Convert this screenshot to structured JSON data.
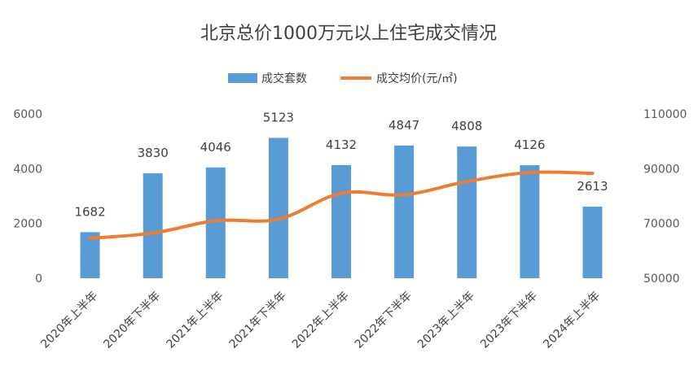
{
  "chart_data": {
    "type": "bar",
    "title": "北京总价1000万元以上住宅成交情况",
    "categories": [
      "2020年上半年",
      "2020年下半年",
      "2021年上半年",
      "2021年下半年",
      "2022年上半年",
      "2022年下半年",
      "2023年上半年",
      "2023年下半年",
      "2024年上半年"
    ],
    "series": [
      {
        "name": "成交套数",
        "type": "bar",
        "axis": "left",
        "color": "#5b9bd5",
        "values": [
          1682,
          3830,
          4046,
          5123,
          4132,
          4847,
          4808,
          4126,
          2613
        ]
      },
      {
        "name": "成交均价(元/㎡)",
        "type": "line",
        "axis": "right",
        "color": "#ed7d31",
        "values": [
          64600,
          66500,
          71000,
          71600,
          81000,
          80500,
          85300,
          88600,
          88300
        ]
      }
    ],
    "y_left": {
      "ylim": [
        0,
        6000
      ],
      "ticks": [
        "0",
        "2000",
        "4000",
        "6000"
      ]
    },
    "y_right": {
      "ylim": [
        50000,
        110000
      ],
      "ticks": [
        "50000",
        "70000",
        "90000",
        "110000"
      ]
    },
    "legend_position": "top-center",
    "grid": false
  }
}
